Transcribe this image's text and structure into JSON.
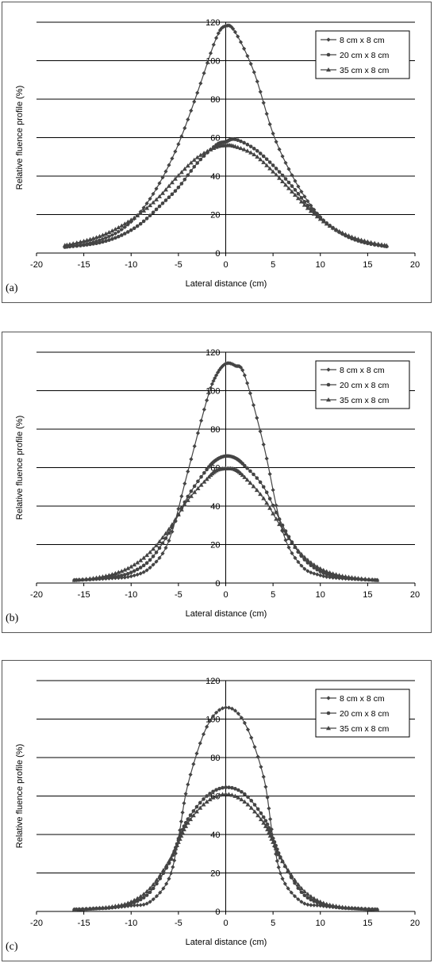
{
  "chart_data": [
    {
      "type": "line",
      "panel_label": "(a)",
      "xlabel": "Lateral distance (cm)",
      "ylabel": "Relative fluence profile (%)",
      "xlim": [
        -20,
        20
      ],
      "ylim": [
        0,
        120
      ],
      "x_ticks": [
        -20,
        -15,
        -10,
        -5,
        0,
        5,
        10,
        15,
        20
      ],
      "y_ticks": [
        0,
        20,
        40,
        60,
        80,
        100,
        120
      ],
      "grid": "horizontal",
      "legend_position": "top-right",
      "series": [
        {
          "name": "8 cm x 8 cm",
          "marker": "diamond",
          "x": [
            -17,
            -15,
            -13,
            -11,
            -9,
            -7,
            -5,
            -3,
            -1,
            0,
            1,
            3,
            5,
            7,
            9,
            11,
            13,
            15,
            17
          ],
          "y": [
            3.2,
            4.6,
            7.3,
            12.2,
            21.5,
            36.3,
            56.6,
            83.3,
            111.8,
            118.0,
            114.9,
            94.0,
            62.1,
            40.5,
            24.7,
            14.1,
            8.4,
            5.2,
            3.5
          ]
        },
        {
          "name": "20 cm x 8 cm",
          "marker": "circle",
          "x": [
            -17,
            -15,
            -13,
            -11,
            -9,
            -7,
            -5,
            -3,
            -1,
            0,
            1,
            3,
            5,
            7,
            9,
            11,
            13,
            15,
            17
          ],
          "y": [
            3.1,
            4.1,
            5.8,
            9.3,
            15.2,
            24.3,
            34.1,
            46.8,
            56.2,
            57.8,
            59.1,
            54.3,
            45.6,
            34.8,
            22.9,
            14.3,
            8.2,
            5.0,
            3.4
          ]
        },
        {
          "name": "35 cm x 8 cm",
          "marker": "triangle",
          "x": [
            -17,
            -15,
            -13,
            -11,
            -9,
            -7,
            -5,
            -3,
            -1,
            0,
            1,
            3,
            5,
            7,
            9,
            11,
            13,
            15,
            17
          ],
          "y": [
            4.0,
            6.2,
            9.3,
            14.2,
            20.7,
            29.4,
            40.3,
            49.7,
            55.1,
            55.9,
            55.4,
            51.2,
            42.3,
            31.9,
            21.8,
            14.1,
            9.0,
            5.9,
            3.9
          ]
        }
      ]
    },
    {
      "type": "line",
      "panel_label": "(b)",
      "xlabel": "Lateral distance (cm)",
      "ylabel": "Relative fluence profile (%)",
      "xlim": [
        -20,
        20
      ],
      "ylim": [
        0,
        120
      ],
      "x_ticks": [
        -20,
        -15,
        -10,
        -5,
        0,
        5,
        10,
        15,
        20
      ],
      "y_ticks": [
        0,
        20,
        40,
        60,
        80,
        100,
        120
      ],
      "grid": "horizontal",
      "legend_position": "top-right",
      "series": [
        {
          "name": "8 cm x 8 cm",
          "marker": "diamond",
          "x": [
            -16,
            -14,
            -12,
            -10,
            -8,
            -6,
            -4,
            -2,
            -1,
            0,
            1,
            2,
            4,
            6,
            8,
            10,
            12,
            14,
            16
          ],
          "y": [
            1.5,
            2.0,
            2.5,
            3.5,
            8.0,
            22.0,
            58.0,
            95.0,
            108.0,
            114.0,
            113.0,
            108.0,
            72.0,
            27.0,
            9.0,
            4.0,
            2.5,
            2.0,
            1.5
          ]
        },
        {
          "name": "20 cm x 8 cm",
          "marker": "circle",
          "x": [
            -16,
            -14,
            -12,
            -10,
            -8,
            -6,
            -4,
            -2,
            -1,
            0,
            1,
            2,
            4,
            6,
            8,
            10,
            12,
            14,
            16
          ],
          "y": [
            1.5,
            2.0,
            3.0,
            5.5,
            12.0,
            26.0,
            45.0,
            59.0,
            64.0,
            66.0,
            65.0,
            61.0,
            50.0,
            30.0,
            14.0,
            6.0,
            3.0,
            2.0,
            1.5
          ]
        },
        {
          "name": "35 cm x 8 cm",
          "marker": "triangle",
          "x": [
            -16,
            -14,
            -12,
            -10,
            -8,
            -6,
            -4,
            -2,
            -1,
            0,
            1,
            2,
            4,
            6,
            8,
            10,
            12,
            14,
            16
          ],
          "y": [
            1.5,
            2.5,
            4.5,
            8.5,
            16.0,
            28.0,
            43.0,
            54.0,
            58.5,
            59.5,
            59.0,
            55.0,
            44.0,
            28.0,
            15.0,
            7.5,
            4.0,
            2.5,
            1.5
          ]
        }
      ]
    },
    {
      "type": "line",
      "panel_label": "(c)",
      "xlabel": "Lateral distance (cm)",
      "ylabel": "Relative fluence profile (%)",
      "xlim": [
        -20,
        20
      ],
      "ylim": [
        0,
        120
      ],
      "x_ticks": [
        -20,
        -15,
        -10,
        -5,
        0,
        5,
        10,
        15,
        20
      ],
      "y_ticks": [
        0,
        20,
        40,
        60,
        80,
        100,
        120
      ],
      "grid": "horizontal",
      "legend_position": "top-right",
      "series": [
        {
          "name": "8 cm x 8 cm",
          "marker": "diamond",
          "x": [
            -16,
            -14,
            -12,
            -10,
            -8,
            -6,
            -5,
            -4,
            -2,
            0,
            2,
            4,
            5,
            6,
            8,
            10,
            12,
            14,
            16
          ],
          "y": [
            1.0,
            1.5,
            2.0,
            3.0,
            5.0,
            17.0,
            38.0,
            66.0,
            96.0,
            106.0,
            98.0,
            70.0,
            38.0,
            17.0,
            5.0,
            3.0,
            2.0,
            1.5,
            1.0
          ]
        },
        {
          "name": "20 cm x 8 cm",
          "marker": "circle",
          "x": [
            -16,
            -14,
            -12,
            -10,
            -8,
            -6,
            -5,
            -4,
            -2,
            0,
            2,
            4,
            5,
            6,
            8,
            10,
            12,
            14,
            16
          ],
          "y": [
            1.0,
            1.5,
            2.0,
            4.0,
            10.0,
            25.0,
            37.0,
            48.0,
            60.0,
            64.5,
            61.0,
            49.0,
            38.0,
            26.0,
            10.0,
            4.0,
            2.0,
            1.5,
            1.0
          ]
        },
        {
          "name": "35 cm x 8 cm",
          "marker": "triangle",
          "x": [
            -16,
            -14,
            -12,
            -10,
            -8,
            -6,
            -5,
            -4,
            -2,
            0,
            2,
            4,
            5,
            6,
            8,
            10,
            12,
            14,
            16
          ],
          "y": [
            1.0,
            1.5,
            2.5,
            5.0,
            12.0,
            26.0,
            36.0,
            46.0,
            57.0,
            61.0,
            57.0,
            46.0,
            36.0,
            26.0,
            12.0,
            5.0,
            2.5,
            1.5,
            1.0
          ]
        }
      ]
    }
  ]
}
